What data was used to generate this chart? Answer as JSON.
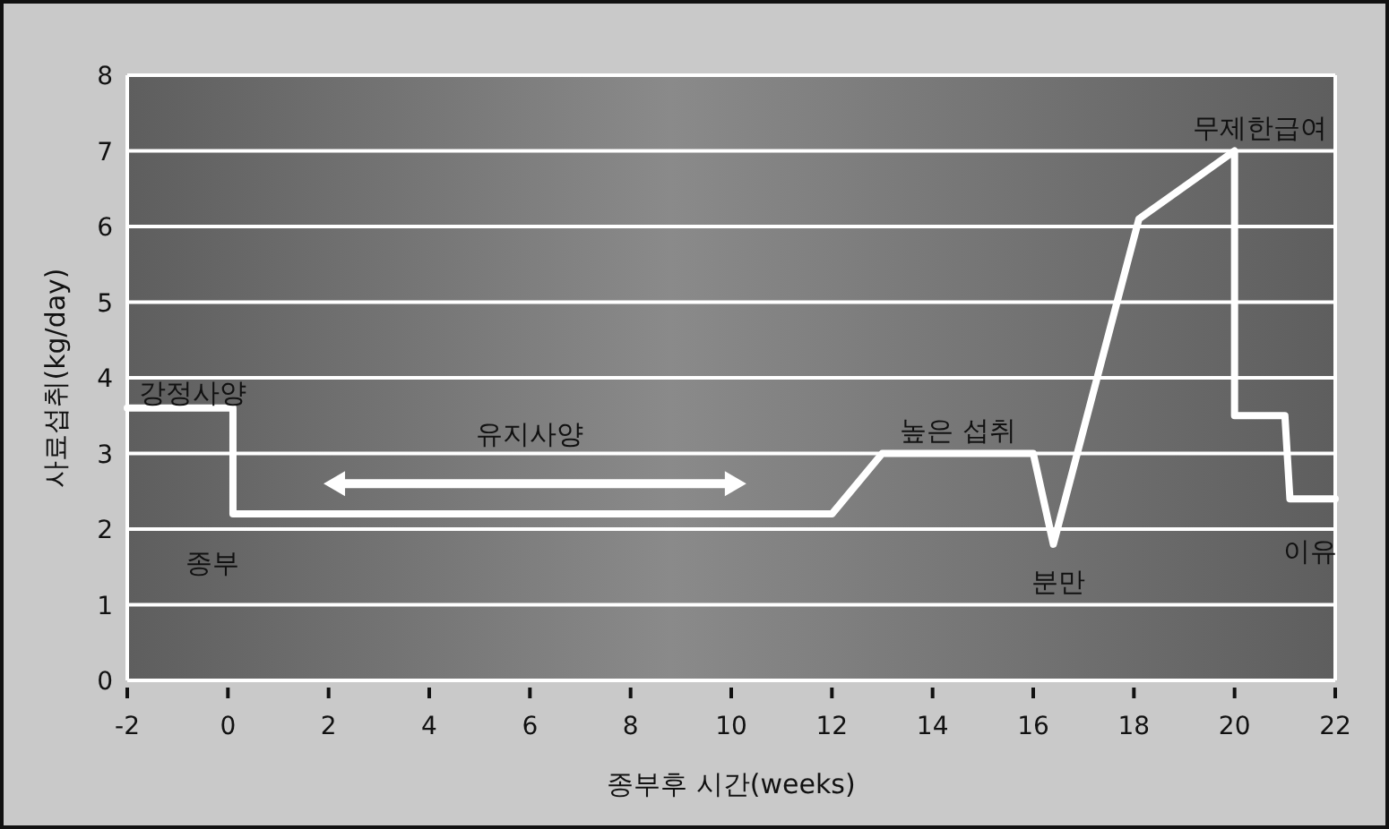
{
  "chart_data": {
    "type": "line",
    "xlabel": "종부후 시간(weeks)",
    "ylabel": "사료섭취(kg/day)",
    "x": [
      -2,
      0.1,
      0.1,
      12,
      13,
      16,
      16.4,
      18.1,
      20,
      20,
      21,
      21.1,
      22
    ],
    "series": [
      {
        "color": "#ffffff",
        "values": [
          3.6,
          3.6,
          2.2,
          2.2,
          3,
          3,
          1.8,
          6.1,
          7,
          3.5,
          3.5,
          2.4,
          2.4
        ]
      }
    ],
    "xlim": [
      -2,
      22
    ],
    "xticks": [
      -2,
      0,
      2,
      4,
      6,
      8,
      10,
      12,
      14,
      16,
      18,
      20,
      22
    ],
    "ylim": [
      0,
      8
    ],
    "yticks": [
      0,
      1,
      2,
      3,
      4,
      5,
      6,
      7,
      8
    ],
    "grid": "y",
    "marker": "none",
    "line_style": "solid",
    "annotations": [
      "강정사양",
      "종부",
      "유지사양",
      "높은 섭취",
      "분만",
      "무제한급여",
      "이유"
    ]
  }
}
